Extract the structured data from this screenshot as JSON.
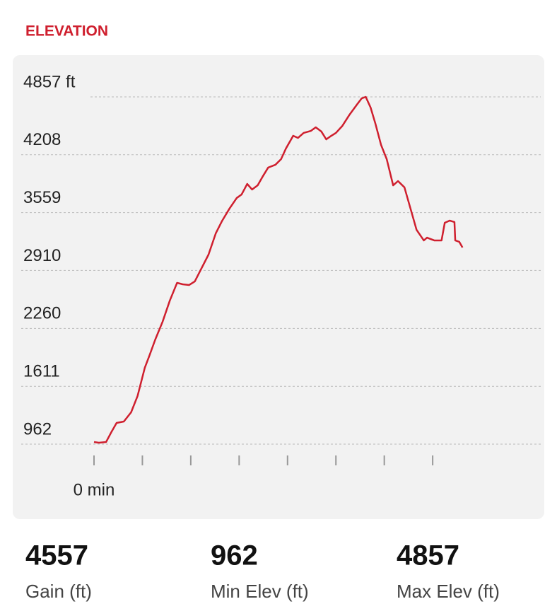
{
  "header": {
    "title": "ELEVATION"
  },
  "chart_data": {
    "type": "line",
    "color": "#cf1f2e",
    "grid": true,
    "ylim": [
      962,
      4857
    ],
    "yticks": [
      962,
      1611,
      2260,
      2910,
      3559,
      4208,
      {
        "value": 4857,
        "label": "4857 ft"
      }
    ],
    "xlim": [
      0,
      540
    ],
    "xticks": [
      {
        "value": 0,
        "label": "0 min"
      },
      {
        "value": 60,
        "label": null
      },
      {
        "value": 120,
        "label": null
      },
      {
        "value": 180,
        "label": null
      },
      {
        "value": 240,
        "label": null
      },
      {
        "value": 300,
        "label": null
      },
      {
        "value": 360,
        "label": null
      },
      {
        "value": 420,
        "label": null
      }
    ],
    "x": [
      0,
      6,
      15,
      22,
      28,
      37,
      46,
      54,
      63,
      69,
      76,
      85,
      94,
      103,
      110,
      118,
      125,
      133,
      142,
      151,
      159,
      168,
      177,
      183,
      190,
      196,
      203,
      209,
      216,
      225,
      232,
      238,
      247,
      253,
      260,
      269,
      275,
      282,
      288,
      293,
      300,
      308,
      317,
      326,
      332,
      337,
      343,
      349,
      356,
      363,
      371,
      377,
      385,
      392,
      400,
      409,
      413,
      422,
      431,
      435,
      441,
      447,
      448,
      453,
      457
    ],
    "values": [
      986,
      978,
      986,
      1105,
      1200,
      1216,
      1319,
      1502,
      1819,
      1962,
      2136,
      2334,
      2572,
      2771,
      2755,
      2747,
      2787,
      2929,
      3088,
      3326,
      3469,
      3604,
      3723,
      3762,
      3881,
      3818,
      3865,
      3961,
      4064,
      4096,
      4159,
      4278,
      4421,
      4397,
      4453,
      4476,
      4516,
      4468,
      4381,
      4413,
      4453,
      4532,
      4659,
      4770,
      4841,
      4857,
      4738,
      4556,
      4318,
      4159,
      3865,
      3913,
      3842,
      3620,
      3366,
      3247,
      3278,
      3247,
      3247,
      3445,
      3469,
      3453,
      3247,
      3231,
      3167
    ]
  },
  "stats": [
    {
      "value": 4557,
      "label": "Gain (ft)"
    },
    {
      "value": 962,
      "label": "Min Elev (ft)"
    },
    {
      "value": 4857,
      "label": "Max Elev (ft)"
    }
  ]
}
